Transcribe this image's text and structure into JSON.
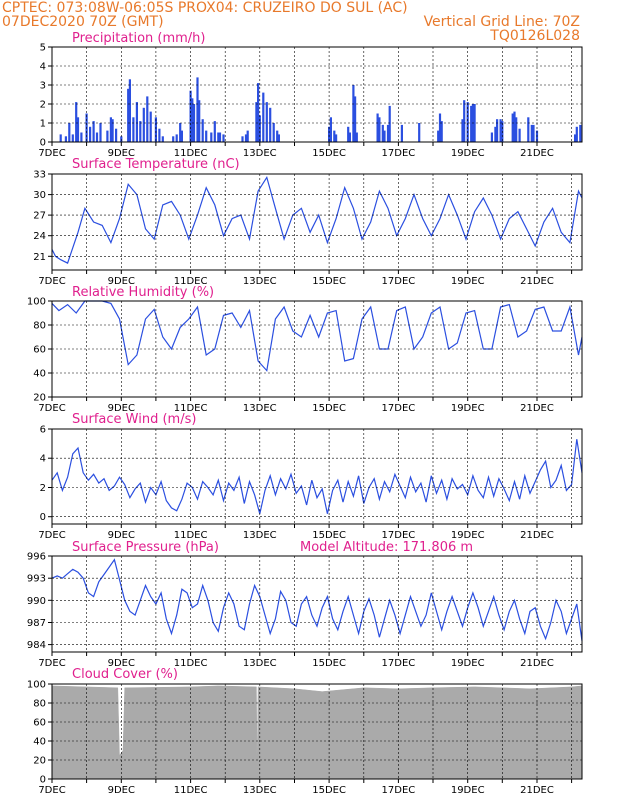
{
  "header": {
    "line1": "CPTEC:   073:08W-06:05S   PROX04: CRUZEIRO DO SUL (AC)",
    "line2_left": "07DEC2020 70Z (GMT)",
    "line2_right": "Vertical Grid Line: 70Z",
    "line3_right": "TQ0126L028"
  },
  "colors": {
    "header": "#e8792b",
    "title": "#e0208e",
    "series": "#2b4fe0",
    "cloud": "#aaaaaa"
  },
  "x_ticks": [
    "7DEC",
    "9DEC",
    "11DEC",
    "13DEC",
    "15DEC",
    "17DEC",
    "19DEC",
    "21DEC"
  ],
  "chart_data": [
    {
      "id": "precip",
      "type": "bar",
      "title": "Precipitation (mm/h)",
      "ylim": [
        0,
        5
      ],
      "yticks": [
        0,
        1,
        2,
        3,
        4,
        5
      ],
      "x_range_days": [
        7,
        22.3
      ],
      "bars": [
        [
          7.25,
          0.4
        ],
        [
          7.4,
          0.3
        ],
        [
          7.5,
          1.0
        ],
        [
          7.6,
          0.4
        ],
        [
          7.7,
          2.1
        ],
        [
          7.75,
          1.3
        ],
        [
          7.85,
          0.5
        ],
        [
          8.0,
          1.5
        ],
        [
          8.1,
          0.8
        ],
        [
          8.2,
          1.1
        ],
        [
          8.3,
          0.5
        ],
        [
          8.4,
          1.0
        ],
        [
          8.6,
          0.6
        ],
        [
          8.7,
          1.3
        ],
        [
          8.75,
          1.2
        ],
        [
          8.85,
          0.7
        ],
        [
          9.0,
          0.3
        ],
        [
          9.2,
          2.8
        ],
        [
          9.25,
          3.3
        ],
        [
          9.35,
          1.3
        ],
        [
          9.45,
          2.1
        ],
        [
          9.55,
          1.1
        ],
        [
          9.65,
          1.8
        ],
        [
          9.75,
          2.4
        ],
        [
          9.85,
          1.6
        ],
        [
          10.0,
          1.3
        ],
        [
          10.1,
          0.7
        ],
        [
          10.2,
          0.3
        ],
        [
          10.5,
          0.3
        ],
        [
          10.6,
          0.4
        ],
        [
          10.7,
          1.0
        ],
        [
          10.75,
          0.6
        ],
        [
          11.0,
          2.7
        ],
        [
          11.05,
          2.3
        ],
        [
          11.1,
          2.0
        ],
        [
          11.2,
          3.4
        ],
        [
          11.25,
          2.2
        ],
        [
          11.35,
          1.2
        ],
        [
          11.45,
          0.6
        ],
        [
          11.6,
          0.5
        ],
        [
          11.7,
          1.1
        ],
        [
          11.8,
          0.5
        ],
        [
          11.85,
          0.5
        ],
        [
          11.95,
          0.4
        ],
        [
          12.5,
          0.3
        ],
        [
          12.6,
          0.4
        ],
        [
          12.65,
          0.6
        ],
        [
          12.9,
          2.1
        ],
        [
          12.95,
          3.1
        ],
        [
          13.0,
          1.4
        ],
        [
          13.1,
          2.6
        ],
        [
          13.2,
          2.1
        ],
        [
          13.3,
          1.8
        ],
        [
          13.4,
          1.0
        ],
        [
          13.5,
          0.6
        ],
        [
          13.55,
          0.4
        ],
        [
          15.0,
          0.8
        ],
        [
          15.05,
          1.3
        ],
        [
          15.15,
          0.6
        ],
        [
          15.2,
          0.4
        ],
        [
          15.55,
          0.8
        ],
        [
          15.6,
          0.5
        ],
        [
          15.7,
          3.0
        ],
        [
          15.75,
          2.4
        ],
        [
          15.8,
          0.5
        ],
        [
          16.4,
          1.5
        ],
        [
          16.45,
          1.3
        ],
        [
          16.55,
          0.9
        ],
        [
          16.6,
          0.6
        ],
        [
          16.7,
          0.9
        ],
        [
          16.75,
          1.9
        ],
        [
          17.1,
          0.9
        ],
        [
          17.6,
          1.0
        ],
        [
          18.15,
          0.6
        ],
        [
          18.2,
          1.5
        ],
        [
          18.25,
          1.1
        ],
        [
          18.85,
          1.2
        ],
        [
          18.9,
          2.2
        ],
        [
          19.0,
          2.1
        ],
        [
          19.1,
          1.9
        ],
        [
          19.15,
          2.0
        ],
        [
          19.2,
          2.0
        ],
        [
          19.7,
          0.5
        ],
        [
          19.8,
          0.8
        ],
        [
          19.85,
          1.2
        ],
        [
          19.95,
          1.2
        ],
        [
          20.0,
          1.1
        ],
        [
          20.3,
          1.5
        ],
        [
          20.35,
          1.6
        ],
        [
          20.4,
          1.3
        ],
        [
          20.5,
          0.7
        ],
        [
          20.75,
          1.3
        ],
        [
          20.85,
          0.9
        ],
        [
          20.9,
          0.9
        ],
        [
          21.0,
          0.6
        ],
        [
          22.1,
          0.4
        ],
        [
          22.15,
          0.8
        ],
        [
          22.25,
          0.9
        ]
      ]
    },
    {
      "id": "temp",
      "type": "line",
      "title": "Surface Temperature (nC)",
      "ylim": [
        19,
        33
      ],
      "yticks": [
        21,
        24,
        27,
        30,
        33
      ],
      "x_range_days": [
        7,
        22.3
      ],
      "x": [
        7.0,
        7.1,
        7.25,
        7.45,
        7.75,
        7.95,
        8.2,
        8.45,
        8.7,
        8.95,
        9.2,
        9.45,
        9.7,
        9.95,
        10.2,
        10.45,
        10.7,
        10.95,
        11.2,
        11.45,
        11.7,
        11.95,
        12.2,
        12.45,
        12.7,
        12.95,
        13.2,
        13.45,
        13.7,
        13.95,
        14.2,
        14.45,
        14.7,
        14.95,
        15.2,
        15.45,
        15.7,
        15.95,
        16.2,
        16.45,
        16.7,
        16.95,
        17.2,
        17.45,
        17.7,
        17.95,
        18.2,
        18.45,
        18.7,
        18.95,
        19.2,
        19.45,
        19.7,
        19.95,
        20.2,
        20.45,
        20.7,
        20.95,
        21.2,
        21.45,
        21.7,
        21.95,
        22.2,
        22.3
      ],
      "y": [
        22.0,
        21.0,
        20.5,
        20.0,
        24.5,
        28.0,
        26.0,
        25.5,
        23.0,
        26.5,
        31.5,
        30.0,
        25.0,
        23.5,
        28.5,
        29.0,
        27.0,
        23.5,
        27.0,
        31.0,
        28.5,
        24.0,
        26.5,
        27.0,
        23.5,
        30.5,
        32.5,
        28.0,
        23.5,
        27.0,
        28.0,
        24.5,
        27.0,
        23.0,
        26.5,
        31.0,
        28.0,
        23.5,
        26.0,
        30.5,
        28.0,
        24.0,
        26.5,
        30.0,
        26.5,
        24.0,
        26.5,
        30.0,
        27.0,
        23.5,
        27.5,
        29.5,
        27.0,
        23.5,
        26.5,
        27.5,
        25.0,
        22.5,
        26.0,
        28.0,
        24.5,
        23.0,
        30.5,
        29.5
      ]
    },
    {
      "id": "rh",
      "type": "line",
      "title": "Relative Humidity (%)",
      "ylim": [
        20,
        100
      ],
      "yticks": [
        20,
        40,
        60,
        80,
        100
      ],
      "x_range_days": [
        7,
        22.3
      ],
      "x": [
        7.0,
        7.2,
        7.45,
        7.7,
        7.95,
        8.2,
        8.45,
        8.7,
        8.95,
        9.2,
        9.45,
        9.7,
        9.95,
        10.2,
        10.45,
        10.7,
        10.95,
        11.2,
        11.45,
        11.7,
        11.95,
        12.2,
        12.45,
        12.7,
        12.95,
        13.2,
        13.45,
        13.7,
        13.95,
        14.2,
        14.45,
        14.7,
        14.95,
        15.2,
        15.45,
        15.7,
        15.95,
        16.2,
        16.45,
        16.7,
        16.95,
        17.2,
        17.45,
        17.7,
        17.95,
        18.2,
        18.45,
        18.7,
        18.95,
        19.2,
        19.45,
        19.7,
        19.95,
        20.2,
        20.45,
        20.7,
        20.95,
        21.2,
        21.45,
        21.7,
        21.95,
        22.2,
        22.3
      ],
      "y": [
        98,
        92,
        97,
        90,
        100,
        100,
        100,
        98,
        85,
        47,
        55,
        85,
        93,
        70,
        60,
        78,
        85,
        95,
        55,
        60,
        88,
        90,
        78,
        92,
        50,
        42,
        85,
        95,
        75,
        70,
        88,
        70,
        90,
        92,
        50,
        52,
        85,
        95,
        60,
        60,
        92,
        95,
        60,
        70,
        90,
        95,
        60,
        65,
        90,
        92,
        60,
        60,
        95,
        97,
        70,
        75,
        93,
        95,
        75,
        75,
        95,
        55,
        70
      ]
    },
    {
      "id": "wind",
      "type": "line",
      "title": "Surface Wind (m/s)",
      "ylim": [
        -0.5,
        6
      ],
      "yticks": [
        0,
        2,
        4,
        6
      ],
      "x_range_days": [
        7,
        22.3
      ],
      "x": [
        7.0,
        7.15,
        7.3,
        7.45,
        7.6,
        7.75,
        7.9,
        8.05,
        8.2,
        8.35,
        8.5,
        8.65,
        8.8,
        8.95,
        9.1,
        9.25,
        9.4,
        9.55,
        9.7,
        9.85,
        10.0,
        10.15,
        10.3,
        10.45,
        10.6,
        10.75,
        10.9,
        11.05,
        11.2,
        11.35,
        11.5,
        11.65,
        11.8,
        11.95,
        12.1,
        12.25,
        12.4,
        12.55,
        12.7,
        12.85,
        13.0,
        13.15,
        13.3,
        13.45,
        13.6,
        13.75,
        13.9,
        14.05,
        14.2,
        14.35,
        14.5,
        14.65,
        14.8,
        14.95,
        15.1,
        15.25,
        15.4,
        15.55,
        15.7,
        15.85,
        16.0,
        16.15,
        16.3,
        16.45,
        16.6,
        16.75,
        16.9,
        17.05,
        17.2,
        17.35,
        17.5,
        17.65,
        17.8,
        17.95,
        18.1,
        18.25,
        18.4,
        18.55,
        18.7,
        18.85,
        19.0,
        19.15,
        19.3,
        19.45,
        19.6,
        19.75,
        19.9,
        20.05,
        20.2,
        20.35,
        20.5,
        20.65,
        20.8,
        20.95,
        21.1,
        21.25,
        21.4,
        21.55,
        21.7,
        21.85,
        22.0,
        22.15,
        22.3
      ],
      "y": [
        2.5,
        3.0,
        1.8,
        2.7,
        4.3,
        4.7,
        3.0,
        2.5,
        2.9,
        2.3,
        2.6,
        1.8,
        2.1,
        2.7,
        2.2,
        1.3,
        1.9,
        2.3,
        1.0,
        2.0,
        1.5,
        2.4,
        1.1,
        0.6,
        0.4,
        1.2,
        2.3,
        2.0,
        1.2,
        2.4,
        2.0,
        1.5,
        2.5,
        1.1,
        2.3,
        1.8,
        2.7,
        0.9,
        2.4,
        1.5,
        0.2,
        1.8,
        2.8,
        1.5,
        2.6,
        1.9,
        2.9,
        1.6,
        2.1,
        0.8,
        2.5,
        1.3,
        1.9,
        0.2,
        1.8,
        2.5,
        1.0,
        2.4,
        1.4,
        2.8,
        0.9,
        2.0,
        2.6,
        1.2,
        2.4,
        1.7,
        2.9,
        2.1,
        1.3,
        2.7,
        1.7,
        2.3,
        1.0,
        2.8,
        1.6,
        2.5,
        1.2,
        2.6,
        1.9,
        2.2,
        1.5,
        2.8,
        1.8,
        1.3,
        2.7,
        1.4,
        2.6,
        1.9,
        1.1,
        2.4,
        1.2,
        2.8,
        1.6,
        2.4,
        3.2,
        3.8,
        2.0,
        2.5,
        3.5,
        1.8,
        2.2,
        5.3,
        3.0
      ]
    },
    {
      "id": "pressure",
      "type": "line",
      "title": "Surface Pressure (hPa)",
      "annotation": "Model Altitude: 171.806 m",
      "ylim": [
        983,
        996
      ],
      "yticks": [
        984,
        987,
        990,
        993,
        996
      ],
      "x_range_days": [
        7,
        22.3
      ],
      "x": [
        7.0,
        7.15,
        7.3,
        7.45,
        7.6,
        7.75,
        7.9,
        8.05,
        8.2,
        8.35,
        8.5,
        8.65,
        8.8,
        8.95,
        9.1,
        9.25,
        9.4,
        9.55,
        9.7,
        9.85,
        10.0,
        10.15,
        10.3,
        10.45,
        10.6,
        10.75,
        10.9,
        11.05,
        11.2,
        11.35,
        11.5,
        11.65,
        11.8,
        11.95,
        12.1,
        12.25,
        12.4,
        12.55,
        12.7,
        12.85,
        13.0,
        13.15,
        13.3,
        13.45,
        13.6,
        13.75,
        13.9,
        14.05,
        14.2,
        14.35,
        14.5,
        14.65,
        14.8,
        14.95,
        15.1,
        15.25,
        15.4,
        15.55,
        15.7,
        15.85,
        16.0,
        16.15,
        16.3,
        16.45,
        16.6,
        16.75,
        16.9,
        17.05,
        17.2,
        17.35,
        17.5,
        17.65,
        17.8,
        17.95,
        18.1,
        18.25,
        18.4,
        18.55,
        18.7,
        18.85,
        19.0,
        19.15,
        19.3,
        19.45,
        19.6,
        19.75,
        19.9,
        20.05,
        20.2,
        20.35,
        20.5,
        20.65,
        20.8,
        20.95,
        21.1,
        21.25,
        21.4,
        21.55,
        21.7,
        21.85,
        22.0,
        22.15,
        22.3
      ],
      "y": [
        993.0,
        993.3,
        993.0,
        993.6,
        994.2,
        993.8,
        993.0,
        991.0,
        990.5,
        992.5,
        993.5,
        994.5,
        995.5,
        992.8,
        990.0,
        988.5,
        988.0,
        990.0,
        992.0,
        990.5,
        989.5,
        991.0,
        987.5,
        985.5,
        988.0,
        991.5,
        991.0,
        989.0,
        989.5,
        992.0,
        990.0,
        987.0,
        985.8,
        989.0,
        991.0,
        989.5,
        986.5,
        986.0,
        989.5,
        992.0,
        990.5,
        988.0,
        985.5,
        987.5,
        991.2,
        990.0,
        987.0,
        986.5,
        989.5,
        990.5,
        988.0,
        986.5,
        989.0,
        990.5,
        987.5,
        986.0,
        988.5,
        990.5,
        988.0,
        985.5,
        988.5,
        990.2,
        988.0,
        985.0,
        987.5,
        990.0,
        988.0,
        985.5,
        988.0,
        990.5,
        988.5,
        986.5,
        988.0,
        991.0,
        988.5,
        986.0,
        988.5,
        990.5,
        988.5,
        986.5,
        989.0,
        991.0,
        989.0,
        986.5,
        988.5,
        990.5,
        988.0,
        986.0,
        988.5,
        990.0,
        987.5,
        985.5,
        988.5,
        989.0,
        986.5,
        984.8,
        987.0,
        990.0,
        988.5,
        985.5,
        987.5,
        989.5,
        984.5
      ]
    },
    {
      "id": "cloud",
      "type": "area",
      "title": "Cloud Cover (%)",
      "ylim": [
        0,
        100
      ],
      "yticks": [
        0,
        20,
        40,
        60,
        80,
        100
      ],
      "x_range_days": [
        7,
        22.3
      ],
      "x": [
        7.0,
        8.0,
        8.9,
        8.95,
        9.05,
        9.1,
        11.0,
        11.8,
        12.9,
        12.92,
        12.95,
        14.0,
        14.8,
        16.0,
        17.0,
        18.0,
        19.2,
        20.0,
        20.8,
        22.0,
        22.3
      ],
      "y": [
        98,
        97,
        96,
        25,
        30,
        96,
        97,
        98,
        97,
        10,
        97,
        95,
        92,
        96,
        95,
        96,
        97,
        96,
        95,
        97,
        98
      ]
    }
  ]
}
